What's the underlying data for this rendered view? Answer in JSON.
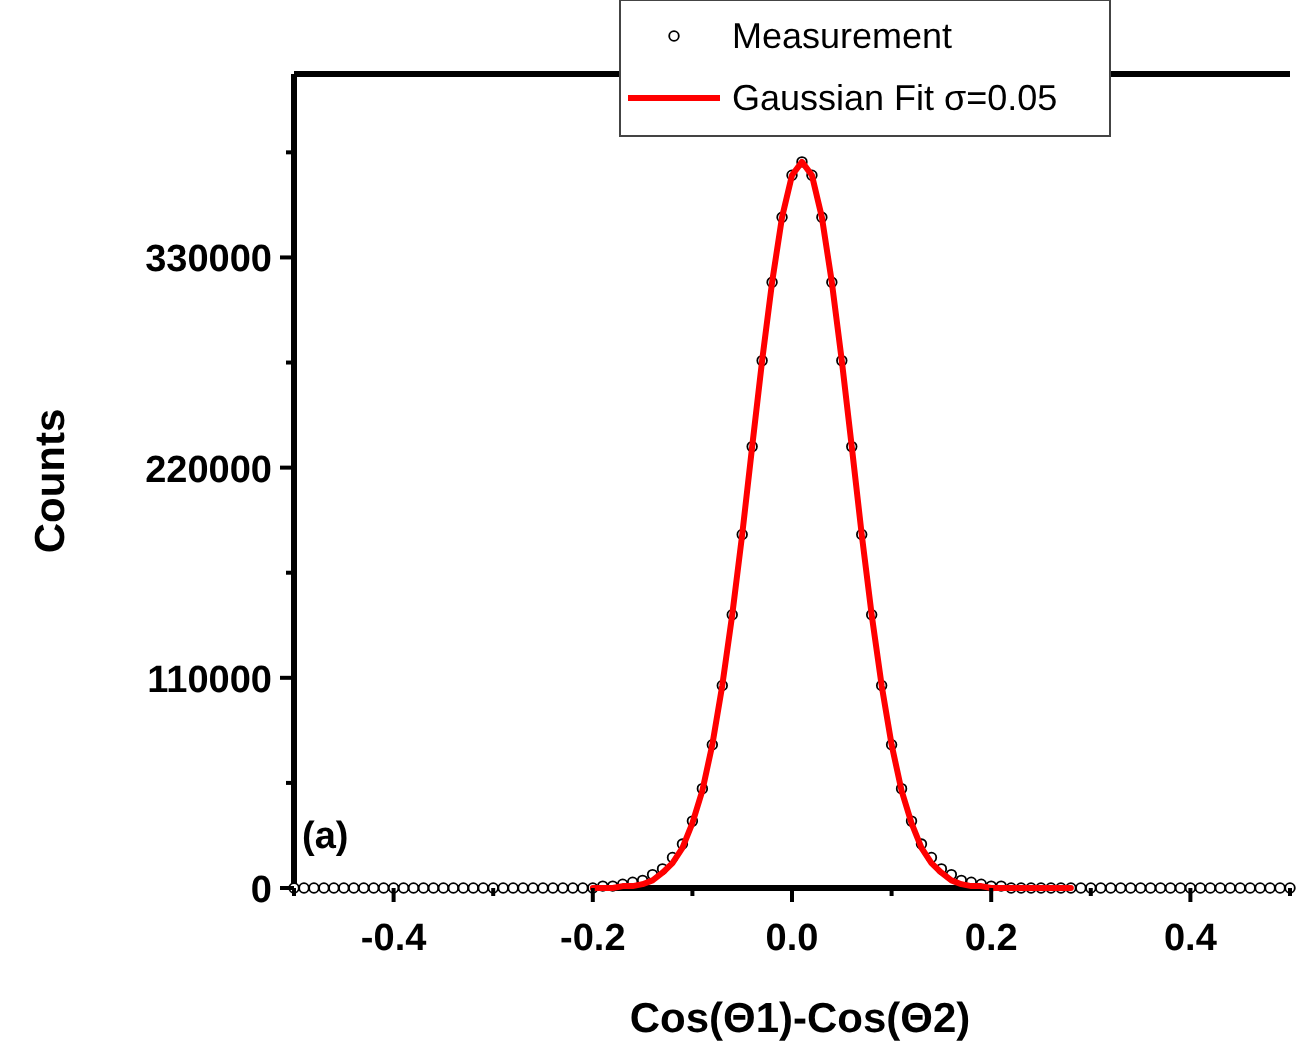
{
  "chart_data": {
    "type": "scatter",
    "xlabel": "Cos(Θ1)-Cos(Θ2)",
    "ylabel": "Counts",
    "annotations": [
      "(a)"
    ],
    "xlim": [
      -0.5,
      0.5
    ],
    "ylim": [
      0,
      426000
    ],
    "xticks": [
      {
        "value": -0.5,
        "label": null
      },
      -0.4,
      {
        "value": -0.3,
        "label": null
      },
      -0.2,
      {
        "value": -0.1,
        "label": null
      },
      {
        "value": 0,
        "label": "0.0"
      },
      {
        "value": 0.1,
        "label": null
      },
      0.2,
      {
        "value": 0.3,
        "label": null
      },
      0.4,
      {
        "value": 0.5,
        "label": null
      }
    ],
    "yticks": [
      0,
      {
        "value": 55000,
        "label": null
      },
      110000,
      {
        "value": 165000,
        "label": null
      },
      220000,
      {
        "value": 275000,
        "label": null
      },
      330000,
      {
        "value": 385000,
        "label": null
      }
    ],
    "legend": "top",
    "grid": false,
    "series": [
      {
        "name": "Measurement",
        "marker": "circle",
        "color": "#000000",
        "x": [
          -0.5,
          -0.49,
          -0.48,
          -0.47,
          -0.46,
          -0.45,
          -0.44,
          -0.43,
          -0.42,
          -0.41,
          -0.4,
          -0.39,
          -0.38,
          -0.37,
          -0.36,
          -0.35,
          -0.34,
          -0.33,
          -0.32,
          -0.31,
          -0.3,
          -0.29,
          -0.28,
          -0.27,
          -0.26,
          -0.25,
          -0.24,
          -0.23,
          -0.22,
          -0.21,
          -0.2,
          -0.19,
          -0.18,
          -0.17,
          -0.16,
          -0.15,
          -0.14,
          -0.13,
          -0.12,
          -0.11,
          -0.1,
          -0.09,
          -0.08,
          -0.07,
          -0.06,
          -0.05,
          -0.04,
          -0.03,
          -0.02,
          -0.01,
          0,
          0.01,
          0.02,
          0.03,
          0.04,
          0.05,
          0.06,
          0.07,
          0.08,
          0.09,
          0.1,
          0.11,
          0.12,
          0.13,
          0.14,
          0.15,
          0.16,
          0.17,
          0.18,
          0.19,
          0.2,
          0.21,
          0.22,
          0.23,
          0.24,
          0.25,
          0.26,
          0.27,
          0.28,
          0.29,
          0.3,
          0.31,
          0.32,
          0.33,
          0.34,
          0.35,
          0.36,
          0.37,
          0.38,
          0.39,
          0.4,
          0.41,
          0.42,
          0.43,
          0.44,
          0.45,
          0.46,
          0.47,
          0.48,
          0.49,
          0.5
        ],
        "values": [
          0,
          0,
          0,
          0,
          0,
          0,
          0,
          0,
          0,
          0,
          0,
          0,
          0,
          0,
          0,
          0,
          0,
          0,
          0,
          0,
          0,
          0,
          0,
          0,
          0,
          0,
          0,
          0,
          0,
          0,
          0,
          1000,
          1000,
          2000,
          3000,
          4000,
          7000,
          10000,
          16000,
          23000,
          35000,
          52000,
          75000,
          106000,
          143000,
          185000,
          231000,
          276000,
          317000,
          351000,
          373000,
          380000,
          373000,
          351000,
          317000,
          276000,
          231000,
          185000,
          143000,
          106000,
          75000,
          52000,
          35000,
          23000,
          16000,
          10000,
          7000,
          4000,
          3000,
          2000,
          1000,
          1000,
          0,
          0,
          0,
          0,
          0,
          0,
          0,
          0,
          0,
          0,
          0,
          0,
          0,
          0,
          0,
          0,
          0,
          0,
          0,
          0,
          0,
          0,
          0,
          0,
          0,
          0,
          0,
          0,
          0
        ]
      },
      {
        "name": "Gaussian Fit σ=0.05",
        "type": "line",
        "marker": "none",
        "line_style": "solid",
        "color": "#ff0000",
        "x": [
          -0.2,
          -0.19,
          -0.18,
          -0.17,
          -0.16,
          -0.15,
          -0.14,
          -0.13,
          -0.12,
          -0.11,
          -0.1,
          -0.09,
          -0.08,
          -0.07,
          -0.06,
          -0.05,
          -0.04,
          -0.03,
          -0.02,
          -0.01,
          0,
          0.01,
          0.02,
          0.03,
          0.04,
          0.05,
          0.06,
          0.07,
          0.08,
          0.09,
          0.1,
          0.11,
          0.12,
          0.13,
          0.14,
          0.15,
          0.16,
          0.17,
          0.18,
          0.19,
          0.2,
          0.21,
          0.22,
          0.23,
          0.24,
          0.25,
          0.26,
          0.27,
          0.28
        ],
        "values": [
          0,
          0,
          0,
          1000,
          1000,
          2000,
          4000,
          8000,
          13000,
          21000,
          34000,
          51000,
          75000,
          106000,
          143000,
          185000,
          231000,
          276000,
          317000,
          351000,
          373000,
          380000,
          373000,
          351000,
          317000,
          276000,
          231000,
          185000,
          143000,
          106000,
          75000,
          51000,
          34000,
          21000,
          13000,
          8000,
          4000,
          2000,
          1000,
          1000,
          0,
          0,
          0,
          0,
          0,
          0,
          0,
          0,
          0
        ]
      }
    ]
  }
}
